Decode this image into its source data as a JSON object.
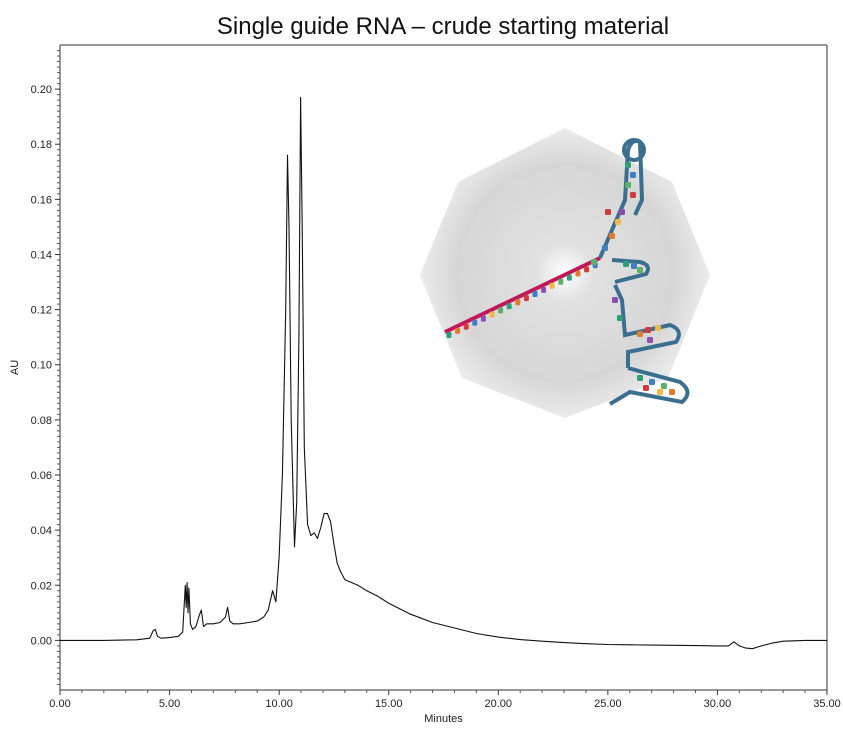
{
  "chart_data": {
    "type": "line",
    "title": "Single guide RNA – crude starting material",
    "xlabel": "Minutes",
    "ylabel": "AU",
    "xlim": [
      0,
      35
    ],
    "ylim": [
      -0.018,
      0.216
    ],
    "x_ticks": [
      "0.00",
      "5.00",
      "10.00",
      "15.00",
      "20.00",
      "25.00",
      "30.00",
      "35.00"
    ],
    "y_ticks": [
      "0.00",
      "0.02",
      "0.04",
      "0.06",
      "0.08",
      "0.10",
      "0.12",
      "0.14",
      "0.16",
      "0.18",
      "0.20"
    ],
    "grid": false,
    "line_color": "#111111",
    "series": [
      {
        "x": [
          0.0,
          2.0,
          3.5,
          4.1,
          4.25,
          4.35,
          4.45,
          4.6,
          5.0,
          5.4,
          5.6,
          5.72,
          5.76,
          5.8,
          5.84,
          5.88,
          5.95,
          6.05,
          6.2,
          6.35,
          6.45,
          6.55,
          6.7,
          7.0,
          7.3,
          7.55,
          7.65,
          7.75,
          7.9,
          8.2,
          8.6,
          9.0,
          9.3,
          9.5,
          9.7,
          9.85,
          10.0,
          10.15,
          10.3,
          10.38,
          10.45,
          10.55,
          10.7,
          10.8,
          10.9,
          10.98,
          11.05,
          11.15,
          11.3,
          11.45,
          11.6,
          11.75,
          11.9,
          12.05,
          12.2,
          12.35,
          12.5,
          12.65,
          12.8,
          13.0,
          13.3,
          13.6,
          14.0,
          14.5,
          15.0,
          15.5,
          16.0,
          17.0,
          18.0,
          19.0,
          20.0,
          21.0,
          22.0,
          23.0,
          24.0,
          25.0,
          26.0,
          27.0,
          28.0,
          29.0,
          30.0,
          30.5,
          30.75,
          31.0,
          31.3,
          31.6,
          32.0,
          32.5,
          33.0,
          34.0,
          35.0
        ],
        "values": [
          0.0,
          0.0,
          0.0002,
          0.0008,
          0.0035,
          0.004,
          0.0015,
          0.0008,
          0.001,
          0.0015,
          0.003,
          0.02,
          0.012,
          0.021,
          0.01,
          0.019,
          0.006,
          0.004,
          0.005,
          0.009,
          0.011,
          0.005,
          0.006,
          0.006,
          0.0065,
          0.0085,
          0.012,
          0.007,
          0.006,
          0.006,
          0.0065,
          0.007,
          0.0085,
          0.011,
          0.018,
          0.014,
          0.03,
          0.06,
          0.12,
          0.176,
          0.15,
          0.08,
          0.034,
          0.05,
          0.11,
          0.197,
          0.15,
          0.07,
          0.042,
          0.038,
          0.039,
          0.037,
          0.041,
          0.046,
          0.046,
          0.043,
          0.035,
          0.028,
          0.025,
          0.022,
          0.021,
          0.02,
          0.018,
          0.016,
          0.0135,
          0.0115,
          0.0095,
          0.0065,
          0.0045,
          0.0025,
          0.0012,
          0.0003,
          -0.0003,
          -0.0008,
          -0.0012,
          -0.0015,
          -0.0016,
          -0.0017,
          -0.0018,
          -0.0019,
          -0.002,
          -0.002,
          -0.0005,
          -0.002,
          -0.0028,
          -0.003,
          -0.002,
          -0.001,
          -0.0003,
          0.0,
          0.0
        ]
      }
    ]
  }
}
